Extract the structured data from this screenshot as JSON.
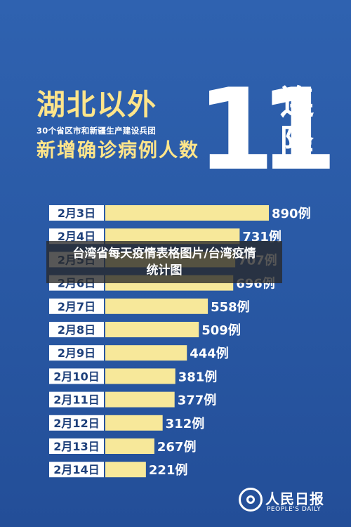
{
  "headline": {
    "main": "湖北以外",
    "sub": "30个省区市和新疆生产建设兵团",
    "sub2": "新增确诊病例人数",
    "big_number": "11",
    "tail": "连降"
  },
  "overlay_caption": {
    "line1": "台湾省每天疫情表格图片/台湾疫情",
    "line2": "统计图"
  },
  "logo": {
    "name": "人民日报",
    "sub": "PEOPLE'S DAILY"
  },
  "colors": {
    "background": "#2a5aa6",
    "bar": "#f7e89a",
    "label_box": "#ffffff",
    "accent_yellow": "#ffe58a"
  },
  "chart_data": {
    "type": "bar",
    "orientation": "horizontal",
    "categories": [
      "2月3日",
      "2月4日",
      "2月5日",
      "2月6日",
      "2月7日",
      "2月8日",
      "2月9日",
      "2月10日",
      "2月11日",
      "2月12日",
      "2月13日",
      "2月14日"
    ],
    "values": [
      890,
      731,
      707,
      696,
      558,
      509,
      444,
      381,
      377,
      312,
      267,
      221
    ],
    "value_labels": [
      "890例",
      "731例",
      "707例",
      "696例",
      "558例",
      "509例",
      "444例",
      "381例",
      "377例",
      "312例",
      "267例",
      "221例"
    ],
    "xlim": [
      0,
      890
    ],
    "grid": false
  }
}
